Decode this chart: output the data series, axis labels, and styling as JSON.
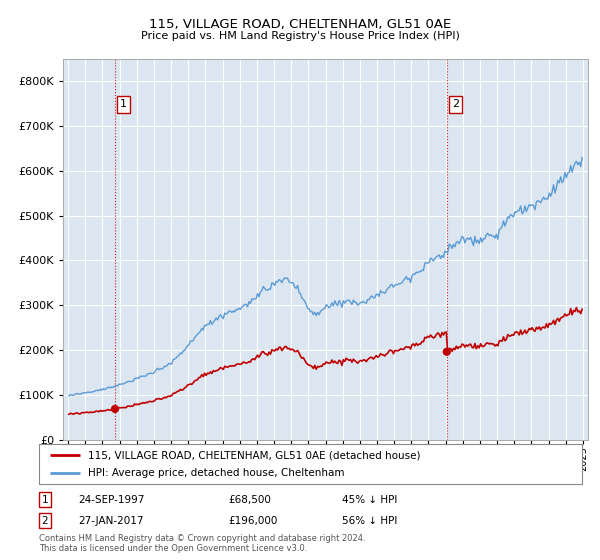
{
  "title": "115, VILLAGE ROAD, CHELTENHAM, GL51 0AE",
  "subtitle": "Price paid vs. HM Land Registry's House Price Index (HPI)",
  "legend_line1": "115, VILLAGE ROAD, CHELTENHAM, GL51 0AE (detached house)",
  "legend_line2": "HPI: Average price, detached house, Cheltenham",
  "transaction1_date": "24-SEP-1997",
  "transaction1_price": 68500,
  "transaction1_label": "45% ↓ HPI",
  "transaction2_date": "27-JAN-2017",
  "transaction2_price": 196000,
  "transaction2_label": "56% ↓ HPI",
  "footer": "Contains HM Land Registry data © Crown copyright and database right 2024.\nThis data is licensed under the Open Government Licence v3.0.",
  "hpi_color": "#5b9bd5",
  "price_color": "#c00000",
  "marker_color": "#c00000",
  "vline_color": "#c00000",
  "plot_bg_color": "#dce6f1",
  "ylim": [
    0,
    850000
  ],
  "x_start_year": 1995,
  "x_end_year": 2025,
  "t1_year": 1997.73,
  "t2_year": 2017.07
}
